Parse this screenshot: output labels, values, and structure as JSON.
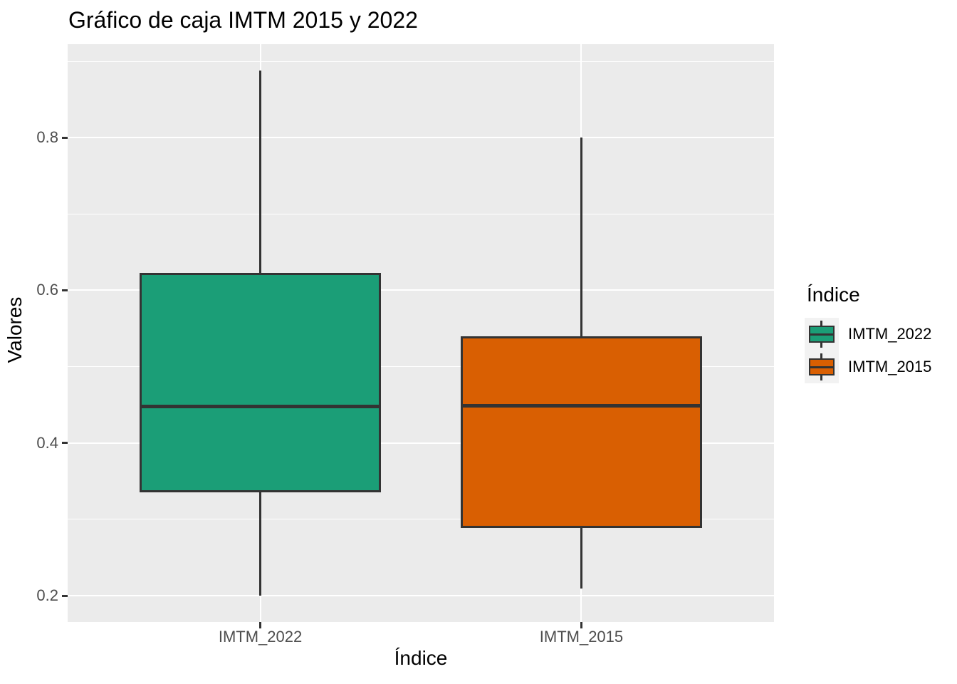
{
  "title": "Gráfico de caja IMTM 2015 y 2022",
  "colors": {
    "panel_background": "#EBEBEB",
    "gridline": "#FFFFFF",
    "box_border": "#333333",
    "tick_label": "#4D4D4D",
    "legend_key_background": "#F2F2F2",
    "series_teal": "#1B9E77",
    "series_orange": "#D95F02"
  },
  "chart_data": {
    "type": "boxplot",
    "title": "Gráfico de caja IMTM 2015 y 2022",
    "xlabel": "Índice",
    "ylabel": "Valores",
    "categories": [
      "IMTM_2022",
      "IMTM_2015"
    ],
    "series": [
      {
        "name": "IMTM_2022",
        "color": "#1B9E77",
        "min": 0.2,
        "q1": 0.335,
        "median": 0.448,
        "q3": 0.623,
        "max": 0.888
      },
      {
        "name": "IMTM_2015",
        "color": "#D95F02",
        "min": 0.209,
        "q1": 0.289,
        "median": 0.449,
        "q3": 0.54,
        "max": 0.8
      }
    ],
    "y_ticks": [
      0.2,
      0.4,
      0.6,
      0.8
    ],
    "y_minor_ticks": [
      0.3,
      0.5,
      0.7,
      0.9
    ],
    "ylim": [
      0.1656,
      0.9224
    ],
    "grid": true,
    "legend": {
      "title": "Índice",
      "position": "right",
      "entries": [
        {
          "label": "IMTM_2022",
          "color": "#1B9E77"
        },
        {
          "label": "IMTM_2015",
          "color": "#D95F02"
        }
      ]
    }
  }
}
